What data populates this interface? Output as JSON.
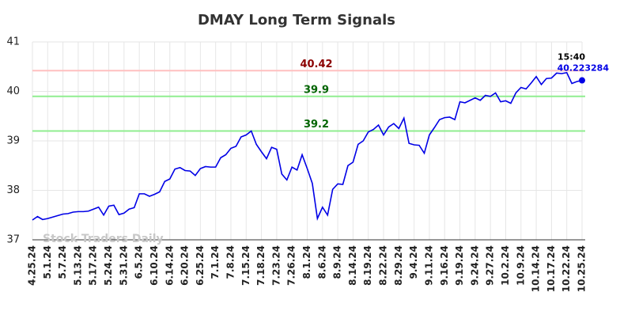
{
  "chart_data": {
    "type": "line",
    "title": "DMAY Long Term Signals",
    "watermark": "Stock Traders Daily",
    "last_time": "15:40",
    "categories": [
      "4.25.24",
      null,
      null,
      "5.1.24",
      null,
      null,
      "5.7.24",
      null,
      null,
      "5.13.24",
      null,
      null,
      "5.17.24",
      null,
      null,
      "5.24.24",
      null,
      null,
      "5.31.24",
      null,
      null,
      "6.5.24",
      null,
      null,
      "6.10.24",
      null,
      null,
      "6.14.24",
      null,
      null,
      "6.20.24",
      null,
      null,
      "6.25.24",
      null,
      null,
      "7.1.24",
      null,
      null,
      "7.8.24",
      null,
      null,
      "7.15.24",
      null,
      null,
      "7.18.24",
      null,
      null,
      "7.23.24",
      null,
      null,
      "7.26.24",
      null,
      null,
      "8.1.24",
      null,
      null,
      "8.6.24",
      null,
      null,
      "8.9.24",
      null,
      null,
      "8.14.24",
      null,
      null,
      "8.19.24",
      null,
      null,
      "8.22.24",
      null,
      null,
      "8.29.24",
      null,
      null,
      "9.4.24",
      null,
      null,
      "9.11.24",
      null,
      null,
      "9.16.24",
      null,
      null,
      "9.19.24",
      null,
      null,
      "9.24.24",
      null,
      null,
      "9.27.24",
      null,
      null,
      "10.2.24",
      null,
      null,
      "10.9.24",
      null,
      null,
      "10.14.24",
      null,
      null,
      "10.17.24",
      null,
      null,
      "10.22.24",
      null,
      null,
      "10.25.24"
    ],
    "series": [
      {
        "color": "#0000e6",
        "values": [
          37.4,
          37.47,
          37.41,
          37.43,
          37.46,
          37.49,
          37.52,
          37.53,
          37.56,
          37.57,
          37.57,
          37.58,
          37.62,
          37.66,
          37.5,
          37.68,
          37.7,
          37.51,
          37.54,
          37.62,
          37.65,
          37.93,
          37.93,
          37.88,
          37.92,
          37.97,
          38.18,
          38.23,
          38.43,
          38.46,
          38.4,
          38.39,
          38.3,
          38.44,
          38.48,
          38.47,
          38.47,
          38.66,
          38.72,
          38.85,
          38.89,
          39.08,
          39.12,
          39.2,
          38.93,
          38.78,
          38.64,
          38.87,
          38.83,
          38.33,
          38.21,
          38.47,
          38.41,
          38.72,
          38.44,
          38.14,
          37.43,
          37.66,
          37.5,
          38.02,
          38.13,
          38.12,
          38.5,
          38.57,
          38.93,
          39.0,
          39.18,
          39.23,
          39.32,
          39.12,
          39.28,
          39.35,
          39.25,
          39.46,
          38.95,
          38.92,
          38.91,
          38.75,
          39.12,
          39.27,
          39.43,
          39.47,
          39.48,
          39.43,
          39.79,
          39.77,
          39.82,
          39.87,
          39.82,
          39.92,
          39.9,
          39.97,
          39.79,
          39.81,
          39.76,
          39.97,
          40.08,
          40.05,
          40.17,
          40.3,
          40.14,
          40.26,
          40.27,
          40.37,
          40.36,
          40.38,
          40.16,
          40.2,
          40.223284
        ]
      }
    ],
    "reference_lines": [
      {
        "value": 40.42,
        "color": "#ffc0c0",
        "label_color": "#8b0000"
      },
      {
        "value": 39.9,
        "color": "#90ee90",
        "label_color": "#006400"
      },
      {
        "value": 39.2,
        "color": "#90ee90",
        "label_color": "#006400"
      }
    ],
    "ylim": [
      37,
      41
    ],
    "yticks": [
      37,
      38,
      39,
      40,
      41
    ],
    "grid": true
  }
}
